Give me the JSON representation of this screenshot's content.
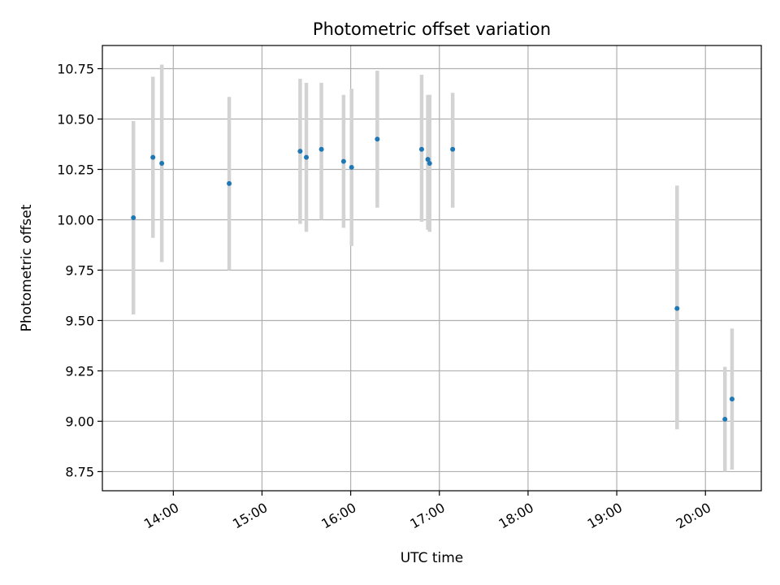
{
  "chart_data": {
    "type": "scatter",
    "title": "Photometric offset variation",
    "xlabel": "UTC time",
    "ylabel": "Photometric offset",
    "x_unit": "hours UTC",
    "xlim": [
      13.2,
      20.63
    ],
    "ylim": [
      8.655,
      10.865
    ],
    "x_ticks": [
      {
        "value": 14,
        "label": "14:00"
      },
      {
        "value": 15,
        "label": "15:00"
      },
      {
        "value": 16,
        "label": "16:00"
      },
      {
        "value": 17,
        "label": "17:00"
      },
      {
        "value": 18,
        "label": "18:00"
      },
      {
        "value": 19,
        "label": "19:00"
      },
      {
        "value": 20,
        "label": "20:00"
      }
    ],
    "y_ticks": [
      {
        "value": 8.75,
        "label": "8.75"
      },
      {
        "value": 9.0,
        "label": "9.00"
      },
      {
        "value": 9.25,
        "label": "9.25"
      },
      {
        "value": 9.5,
        "label": "9.50"
      },
      {
        "value": 9.75,
        "label": "9.75"
      },
      {
        "value": 10.0,
        "label": "10.00"
      },
      {
        "value": 10.25,
        "label": "10.25"
      },
      {
        "value": 10.5,
        "label": "10.50"
      },
      {
        "value": 10.75,
        "label": "10.75"
      }
    ],
    "grid": true,
    "point_color": "#1f77b4",
    "errorbar_color": "#d3d3d3",
    "points": [
      {
        "x": 13.55,
        "y": 10.01,
        "ylow": 9.53,
        "yhigh": 10.49
      },
      {
        "x": 13.77,
        "y": 10.31,
        "ylow": 9.91,
        "yhigh": 10.71
      },
      {
        "x": 13.87,
        "y": 10.28,
        "ylow": 9.79,
        "yhigh": 10.77
      },
      {
        "x": 14.63,
        "y": 10.18,
        "ylow": 9.75,
        "yhigh": 10.61
      },
      {
        "x": 15.43,
        "y": 10.34,
        "ylow": 9.98,
        "yhigh": 10.7
      },
      {
        "x": 15.5,
        "y": 10.31,
        "ylow": 9.94,
        "yhigh": 10.68
      },
      {
        "x": 15.67,
        "y": 10.35,
        "ylow": 10.0,
        "yhigh": 10.68
      },
      {
        "x": 15.92,
        "y": 10.29,
        "ylow": 9.96,
        "yhigh": 10.62
      },
      {
        "x": 16.01,
        "y": 10.26,
        "ylow": 9.87,
        "yhigh": 10.65
      },
      {
        "x": 16.3,
        "y": 10.4,
        "ylow": 10.06,
        "yhigh": 10.74
      },
      {
        "x": 16.8,
        "y": 10.35,
        "ylow": 9.99,
        "yhigh": 10.72
      },
      {
        "x": 16.87,
        "y": 10.3,
        "ylow": 9.95,
        "yhigh": 10.62
      },
      {
        "x": 16.89,
        "y": 10.28,
        "ylow": 9.94,
        "yhigh": 10.62
      },
      {
        "x": 17.15,
        "y": 10.35,
        "ylow": 10.06,
        "yhigh": 10.63
      },
      {
        "x": 19.68,
        "y": 9.56,
        "ylow": 8.96,
        "yhigh": 10.17
      },
      {
        "x": 20.22,
        "y": 9.01,
        "ylow": 8.75,
        "yhigh": 9.27
      },
      {
        "x": 20.3,
        "y": 9.11,
        "ylow": 8.76,
        "yhigh": 9.46
      }
    ]
  }
}
